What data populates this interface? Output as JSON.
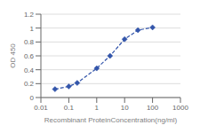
{
  "chart_data": {
    "type": "line",
    "x": [
      0.032,
      0.1,
      0.2,
      1.0,
      3.0,
      10.0,
      30.0,
      100.0
    ],
    "values": [
      0.12,
      0.16,
      0.21,
      0.42,
      0.6,
      0.84,
      0.97,
      1.01
    ],
    "color": "#3355aa",
    "marker": "diamond",
    "line_style": "dashed",
    "log": "x",
    "xlabel": "Recombinant ProteinConcentration(ng/ml)",
    "ylabel": "OD 450",
    "xlim": [
      0.01,
      1000
    ],
    "ylim": [
      0,
      1.2
    ],
    "xticks": [
      0.01,
      0.1,
      1,
      10,
      100,
      1000
    ],
    "yticks": [
      0,
      0.2,
      0.4,
      0.6,
      0.8,
      1,
      1.2
    ],
    "grid": "y"
  }
}
